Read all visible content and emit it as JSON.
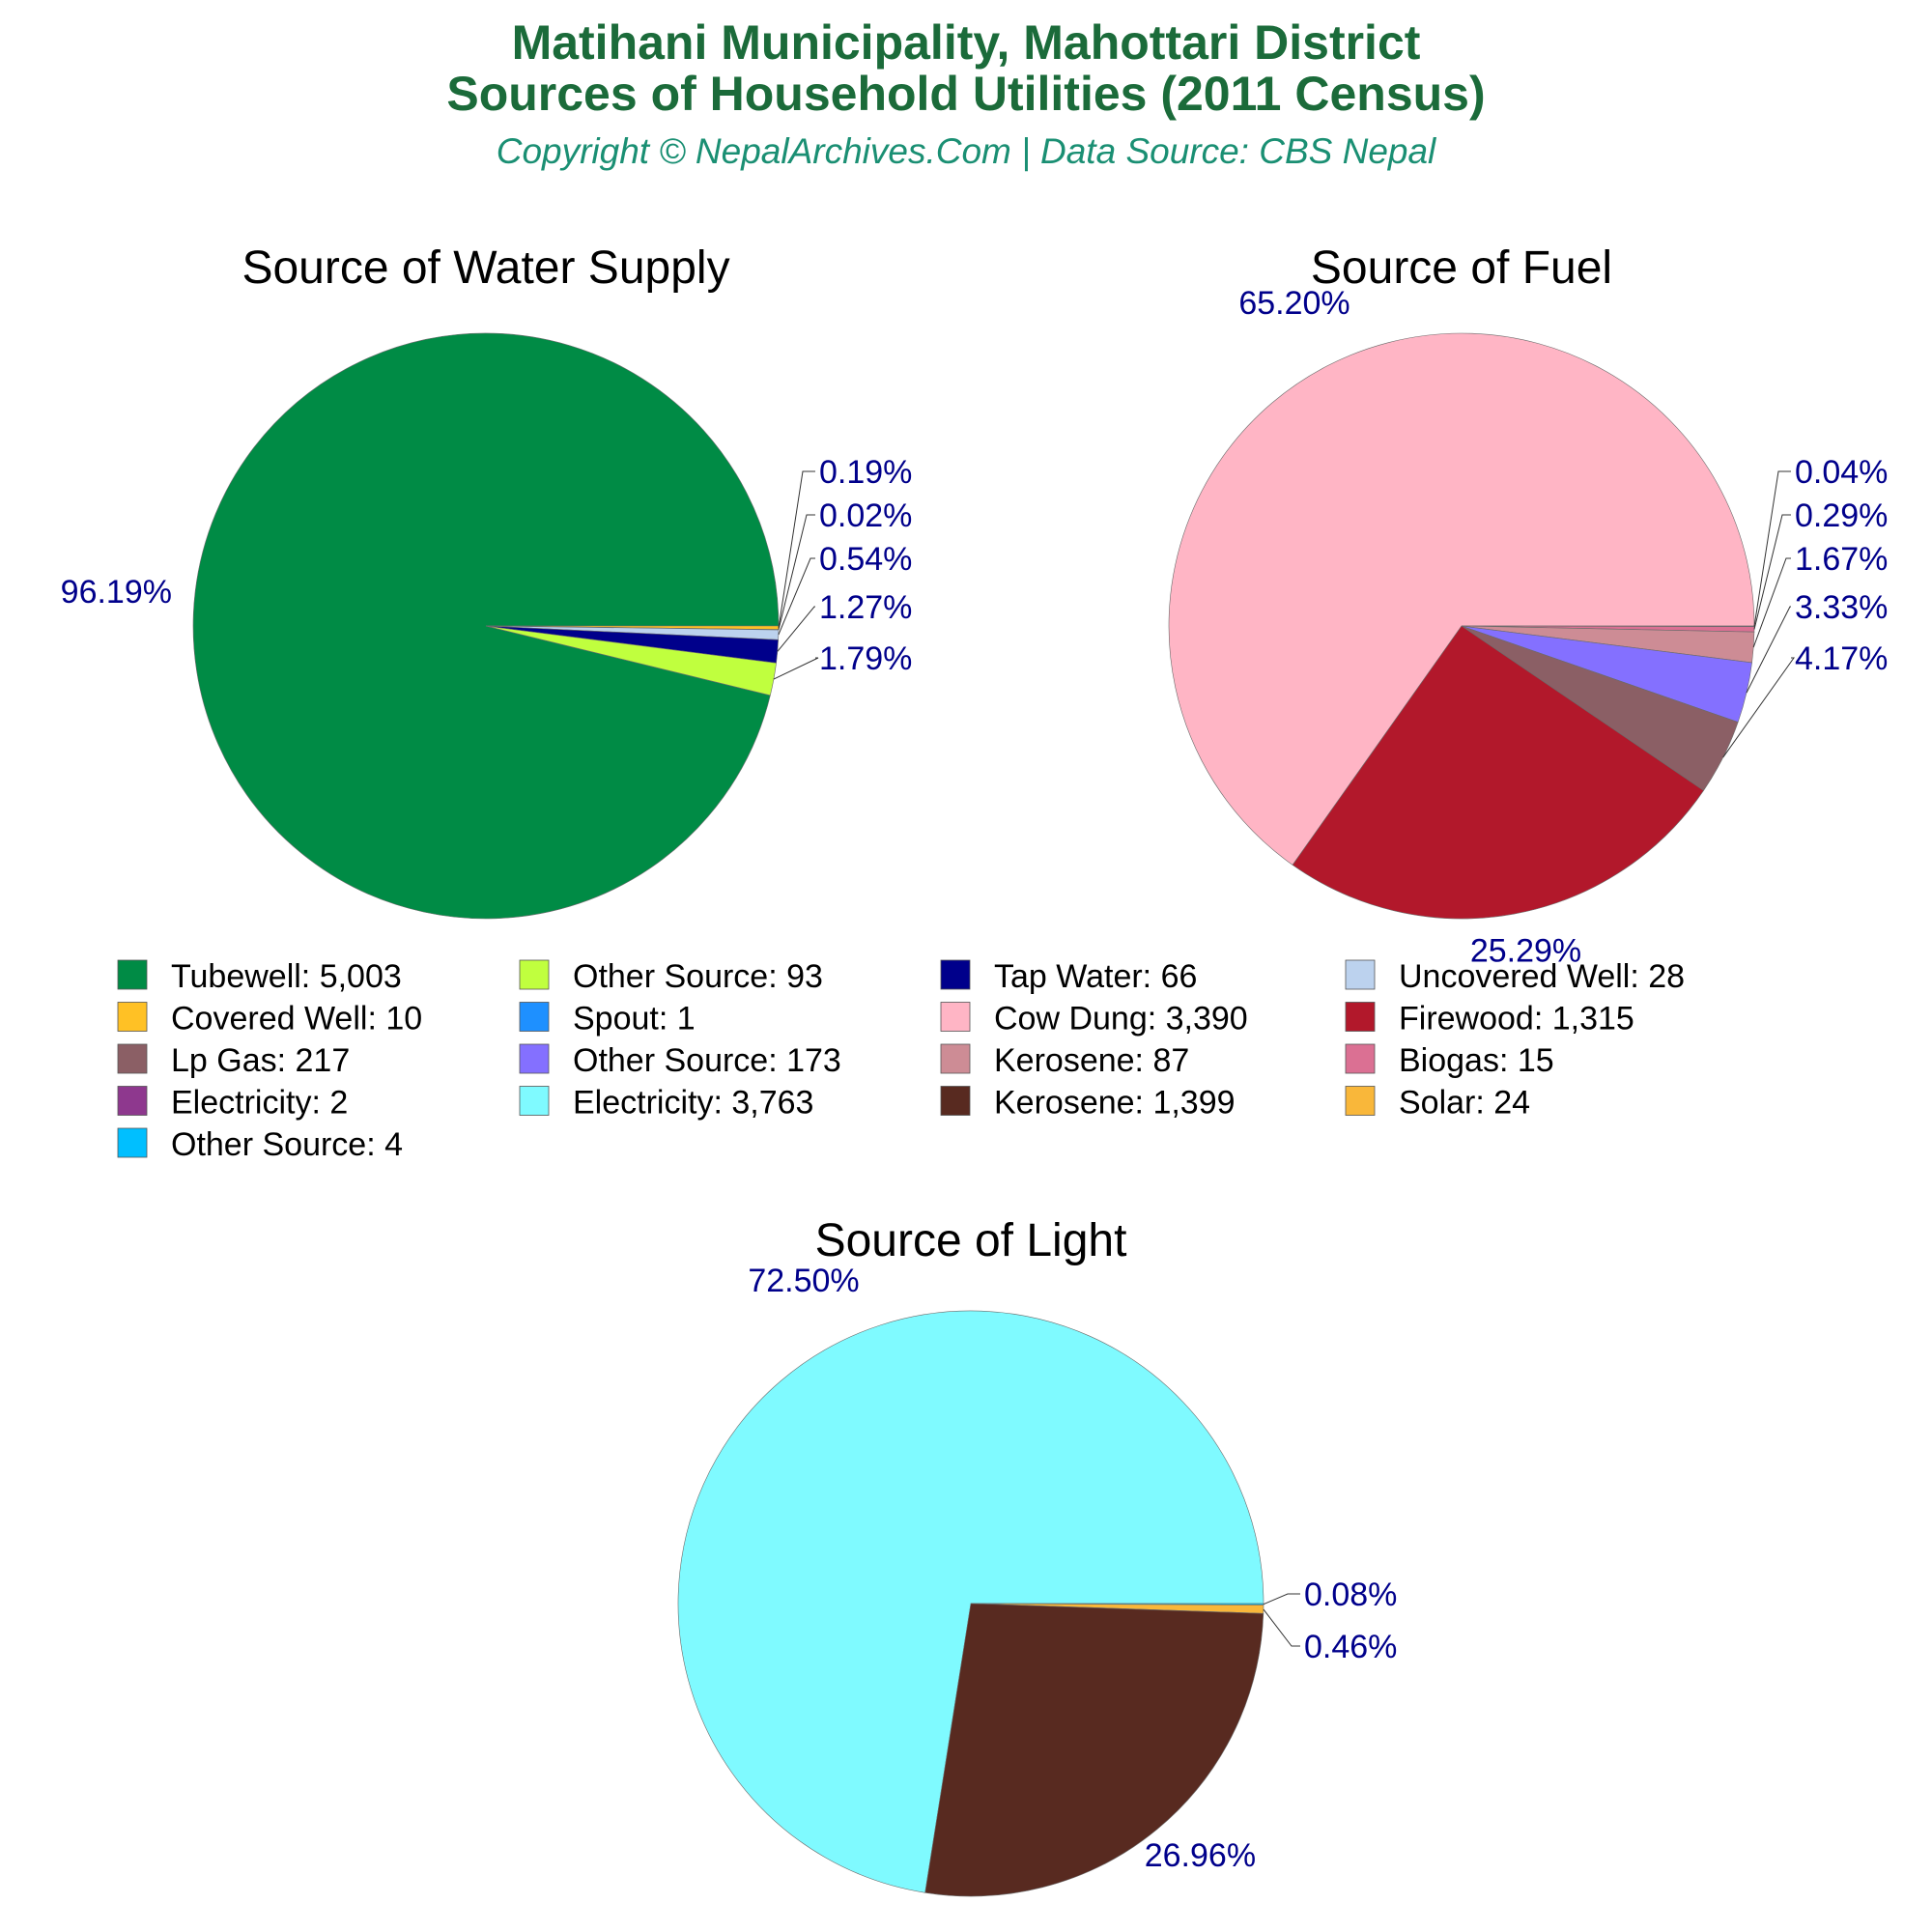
{
  "title_lines": [
    "Matihani Municipality, Mahottari District",
    "Sources of Household Utilities (2011 Census)"
  ],
  "subtitle": "Copyright © NepalArchives.Com | Data Source: CBS Nepal",
  "chart_data": [
    {
      "type": "pie",
      "title": "Source of Water Supply",
      "slices": [
        {
          "name": "Tubewell",
          "value": 5003,
          "pct": "96.19%",
          "color": "#008b45"
        },
        {
          "name": "Covered Well",
          "value": 10,
          "pct": "0.19%",
          "color": "#ffc125"
        },
        {
          "name": "Spout",
          "value": 1,
          "pct": "0.02%",
          "color": "#1e90ff"
        },
        {
          "name": "Uncovered Well",
          "value": 28,
          "pct": "0.54%",
          "color": "#bcd2ee"
        },
        {
          "name": "Tap Water",
          "value": 66,
          "pct": "1.27%",
          "color": "#00008b"
        },
        {
          "name": "Other Source",
          "value": 93,
          "pct": "1.79%",
          "color": "#c0ff3e"
        }
      ]
    },
    {
      "type": "pie",
      "title": "Source of Fuel",
      "slices": [
        {
          "name": "Cow Dung",
          "value": 3390,
          "pct": "65.20%",
          "color": "#ffb5c5"
        },
        {
          "name": "Electricity",
          "value": 2,
          "pct": "0.04%",
          "color": "#8e388e"
        },
        {
          "name": "Biogas",
          "value": 15,
          "pct": "0.29%",
          "color": "#db7093"
        },
        {
          "name": "Kerosene",
          "value": 87,
          "pct": "1.67%",
          "color": "#cd8c95"
        },
        {
          "name": "Other Source",
          "value": 173,
          "pct": "3.33%",
          "color": "#8470ff"
        },
        {
          "name": "Lp Gas",
          "value": 217,
          "pct": "4.17%",
          "color": "#8b5f65"
        },
        {
          "name": "Firewood",
          "value": 1315,
          "pct": "25.29%",
          "color": "#b2182b"
        }
      ]
    },
    {
      "type": "pie",
      "title": "Source of Light",
      "slices": [
        {
          "name": "Electricity",
          "value": 3763,
          "pct": "72.50%",
          "color": "#7ffaff"
        },
        {
          "name": "Other Source",
          "value": 4,
          "pct": "0.08%",
          "color": "#00bfff"
        },
        {
          "name": "Solar",
          "value": 24,
          "pct": "0.46%",
          "color": "#f9b73a"
        },
        {
          "name": "Kerosene",
          "value": 1399,
          "pct": "26.96%",
          "color": "#582a20"
        }
      ]
    }
  ],
  "legend": {
    "items": [
      {
        "label": "Tubewell: 5,003",
        "color": "#008b45"
      },
      {
        "label": "Other Source: 93",
        "color": "#c0ff3e"
      },
      {
        "label": "Tap Water: 66",
        "color": "#00008b"
      },
      {
        "label": "Uncovered Well: 28",
        "color": "#bcd2ee"
      },
      {
        "label": "Covered Well: 10",
        "color": "#ffc125"
      },
      {
        "label": "Spout: 1",
        "color": "#1e90ff"
      },
      {
        "label": "Cow Dung: 3,390",
        "color": "#ffb5c5"
      },
      {
        "label": "Firewood: 1,315",
        "color": "#b2182b"
      },
      {
        "label": "Lp Gas: 217",
        "color": "#8b5f65"
      },
      {
        "label": "Other Source: 173",
        "color": "#8470ff"
      },
      {
        "label": "Kerosene: 87",
        "color": "#cd8c95"
      },
      {
        "label": "Biogas: 15",
        "color": "#db7093"
      },
      {
        "label": "Electricity: 2",
        "color": "#8e388e"
      },
      {
        "label": "Electricity: 3,763",
        "color": "#7ffaff"
      },
      {
        "label": "Kerosene: 1,399",
        "color": "#582a20"
      },
      {
        "label": "Solar: 24",
        "color": "#f9b73a"
      },
      {
        "label": "Other Source: 4",
        "color": "#00bfff"
      }
    ]
  }
}
